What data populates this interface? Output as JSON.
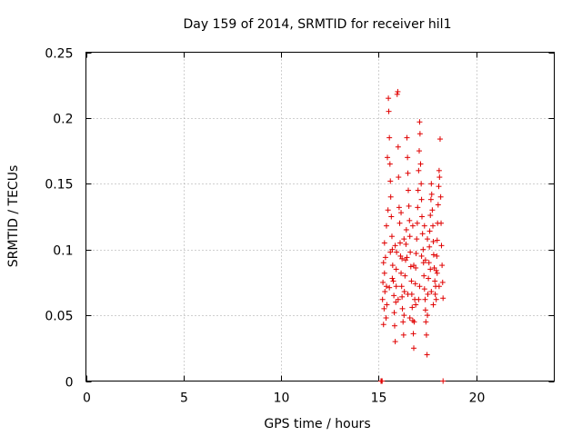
{
  "chart_data": {
    "type": "scatter",
    "title": "Day 159 of 2014, SRMTID for receiver hil1",
    "xlabel": "GPS time / hours",
    "ylabel": "SRMTID / TECUs",
    "xlim": [
      0,
      24
    ],
    "ylim": [
      0,
      0.25
    ],
    "x_ticks": [
      0,
      5,
      10,
      15,
      20
    ],
    "x_tick_labels": [
      "0",
      "5",
      "10",
      "15",
      "20"
    ],
    "y_ticks": [
      0,
      0.05,
      0.1,
      0.15,
      0.2,
      0.25
    ],
    "y_tick_labels": [
      "0",
      "0.05",
      "0.1",
      "0.15",
      "0.2",
      "0.25"
    ],
    "grid": true,
    "marker": "+",
    "color": "#e00000",
    "series": [
      {
        "points": [
          [
            15.12,
            0.0
          ],
          [
            15.15,
            0.0
          ],
          [
            15.18,
            0.0
          ],
          [
            18.3,
            0.0
          ],
          [
            15.2,
            0.062
          ],
          [
            15.22,
            0.075
          ],
          [
            15.25,
            0.09
          ],
          [
            15.28,
            0.055
          ],
          [
            15.3,
            0.082
          ],
          [
            15.32,
            0.068
          ],
          [
            15.35,
            0.094
          ],
          [
            15.38,
            0.048
          ],
          [
            15.4,
            0.072
          ],
          [
            15.42,
            0.058
          ],
          [
            15.45,
            0.17
          ],
          [
            15.48,
            0.13
          ],
          [
            15.5,
            0.215
          ],
          [
            15.52,
            0.205
          ],
          [
            15.55,
            0.185
          ],
          [
            15.58,
            0.165
          ],
          [
            15.6,
            0.152
          ],
          [
            15.62,
            0.14
          ],
          [
            15.65,
            0.125
          ],
          [
            15.68,
            0.11
          ],
          [
            15.7,
            0.1
          ],
          [
            15.72,
            0.088
          ],
          [
            15.75,
            0.076
          ],
          [
            15.78,
            0.065
          ],
          [
            15.8,
            0.052
          ],
          [
            15.82,
            0.042
          ],
          [
            15.85,
            0.03
          ],
          [
            15.88,
            0.06
          ],
          [
            15.9,
            0.085
          ],
          [
            15.92,
            0.098
          ],
          [
            15.95,
            0.218
          ],
          [
            15.98,
            0.22
          ],
          [
            16.0,
            0.178
          ],
          [
            16.02,
            0.155
          ],
          [
            16.05,
            0.132
          ],
          [
            16.08,
            0.12
          ],
          [
            16.1,
            0.105
          ],
          [
            16.12,
            0.095
          ],
          [
            16.15,
            0.082
          ],
          [
            16.18,
            0.072
          ],
          [
            16.2,
            0.064
          ],
          [
            16.22,
            0.055
          ],
          [
            16.25,
            0.045
          ],
          [
            16.28,
            0.035
          ],
          [
            16.3,
            0.05
          ],
          [
            16.32,
            0.068
          ],
          [
            16.35,
            0.08
          ],
          [
            16.38,
            0.092
          ],
          [
            16.4,
            0.104
          ],
          [
            16.42,
            0.115
          ],
          [
            16.45,
            0.185
          ],
          [
            16.48,
            0.17
          ],
          [
            16.5,
            0.158
          ],
          [
            16.52,
            0.145
          ],
          [
            16.55,
            0.133
          ],
          [
            16.58,
            0.122
          ],
          [
            16.6,
            0.11
          ],
          [
            16.62,
            0.098
          ],
          [
            16.65,
            0.087
          ],
          [
            16.68,
            0.076
          ],
          [
            16.7,
            0.066
          ],
          [
            16.72,
            0.056
          ],
          [
            16.75,
            0.046
          ],
          [
            16.78,
            0.036
          ],
          [
            16.8,
            0.025
          ],
          [
            16.82,
            0.045
          ],
          [
            16.85,
            0.062
          ],
          [
            16.88,
            0.074
          ],
          [
            16.9,
            0.086
          ],
          [
            16.92,
            0.097
          ],
          [
            16.95,
            0.108
          ],
          [
            16.98,
            0.12
          ],
          [
            17.0,
            0.132
          ],
          [
            17.02,
            0.145
          ],
          [
            17.05,
            0.16
          ],
          [
            17.08,
            0.175
          ],
          [
            17.1,
            0.197
          ],
          [
            17.12,
            0.188
          ],
          [
            17.15,
            0.165
          ],
          [
            17.18,
            0.15
          ],
          [
            17.2,
            0.138
          ],
          [
            17.22,
            0.125
          ],
          [
            17.25,
            0.112
          ],
          [
            17.28,
            0.1
          ],
          [
            17.3,
            0.09
          ],
          [
            17.32,
            0.08
          ],
          [
            17.35,
            0.07
          ],
          [
            17.38,
            0.062
          ],
          [
            17.4,
            0.054
          ],
          [
            17.42,
            0.045
          ],
          [
            17.45,
            0.035
          ],
          [
            17.48,
            0.02
          ],
          [
            17.5,
            0.05
          ],
          [
            17.52,
            0.066
          ],
          [
            17.55,
            0.078
          ],
          [
            17.58,
            0.09
          ],
          [
            17.6,
            0.102
          ],
          [
            17.62,
            0.114
          ],
          [
            17.65,
            0.126
          ],
          [
            17.68,
            0.138
          ],
          [
            17.7,
            0.15
          ],
          [
            17.72,
            0.142
          ],
          [
            17.75,
            0.13
          ],
          [
            17.78,
            0.118
          ],
          [
            17.8,
            0.106
          ],
          [
            17.82,
            0.096
          ],
          [
            17.85,
            0.086
          ],
          [
            17.88,
            0.076
          ],
          [
            17.9,
            0.066
          ],
          [
            17.92,
            0.072
          ],
          [
            17.95,
            0.084
          ],
          [
            17.98,
            0.095
          ],
          [
            18.0,
            0.107
          ],
          [
            18.02,
            0.12
          ],
          [
            18.05,
            0.134
          ],
          [
            18.08,
            0.148
          ],
          [
            18.1,
            0.16
          ],
          [
            18.12,
            0.155
          ],
          [
            18.15,
            0.184
          ],
          [
            18.18,
            0.14
          ],
          [
            18.2,
            0.12
          ],
          [
            18.22,
            0.103
          ],
          [
            18.25,
            0.088
          ],
          [
            18.28,
            0.075
          ],
          [
            18.3,
            0.063
          ],
          [
            15.3,
            0.105
          ],
          [
            15.6,
            0.098
          ],
          [
            15.9,
            0.072
          ],
          [
            16.2,
            0.093
          ],
          [
            16.5,
            0.066
          ],
          [
            16.8,
            0.088
          ],
          [
            17.1,
            0.072
          ],
          [
            17.4,
            0.092
          ],
          [
            17.7,
            0.068
          ],
          [
            18.0,
            0.082
          ],
          [
            15.4,
            0.118
          ],
          [
            15.7,
            0.078
          ],
          [
            16.0,
            0.062
          ],
          [
            16.3,
            0.108
          ],
          [
            16.6,
            0.048
          ],
          [
            16.9,
            0.058
          ],
          [
            17.2,
            0.095
          ],
          [
            17.5,
            0.108
          ],
          [
            17.8,
            0.058
          ],
          [
            18.1,
            0.072
          ],
          [
            15.25,
            0.043
          ],
          [
            15.55,
            0.071
          ],
          [
            15.85,
            0.103
          ],
          [
            16.15,
            0.128
          ],
          [
            16.45,
            0.094
          ],
          [
            16.75,
            0.118
          ],
          [
            17.05,
            0.062
          ],
          [
            17.35,
            0.118
          ],
          [
            17.65,
            0.085
          ],
          [
            17.95,
            0.062
          ]
        ]
      }
    ]
  }
}
